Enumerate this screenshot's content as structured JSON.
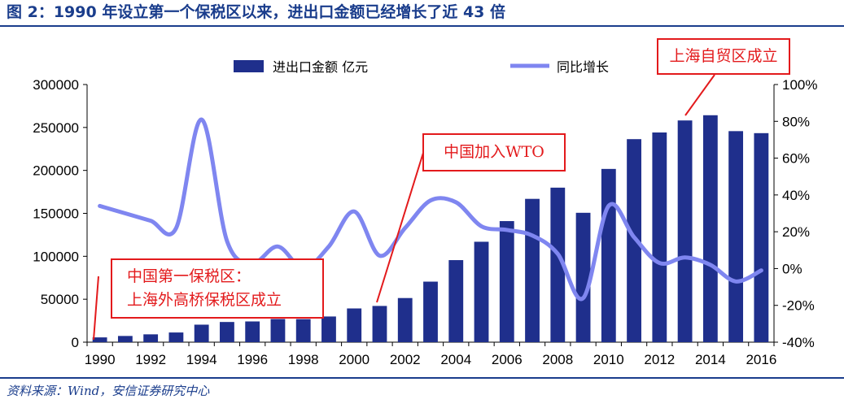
{
  "header": {
    "title": "图 2：1990 年设立第一个保税区以来，进出口金额已经增长了近 43 倍"
  },
  "footer": {
    "source": "资料来源：Wind，安信证券研究中心"
  },
  "colors": {
    "bar": "#1f2f8c",
    "line": "#7f86f0",
    "callout": "#e31a1c",
    "title": "#1a3d8c"
  },
  "callouts": {
    "ftz": "上海自贸区成立",
    "wto": "中国加入WTO",
    "first_line1": "中国第一保税区：",
    "first_line2": "上海外高桥保税区成立"
  },
  "chart_data": {
    "type": "bar",
    "categories": [
      "1990",
      "1991",
      "1992",
      "1993",
      "1994",
      "1995",
      "1996",
      "1997",
      "1998",
      "1999",
      "2000",
      "2001",
      "2002",
      "2003",
      "2004",
      "2005",
      "2006",
      "2007",
      "2008",
      "2009",
      "2010",
      "2011",
      "2012",
      "2013",
      "2014",
      "2015",
      "2016"
    ],
    "x_tick_labels": [
      "1990",
      "1992",
      "1994",
      "1996",
      "1998",
      "2000",
      "2002",
      "2004",
      "2006",
      "2008",
      "2010",
      "2012",
      "2014",
      "2016"
    ],
    "series": [
      {
        "name": "进出口金额 亿元",
        "type": "bar",
        "axis": "left",
        "values": [
          5560,
          7226,
          9120,
          11271,
          20382,
          23500,
          24134,
          26967,
          26850,
          29896,
          39273,
          42184,
          51378,
          70484,
          95539,
          116922,
          140974,
          166863,
          179921,
          150648,
          201722,
          236402,
          244160,
          258169,
          264242,
          245741,
          243386
        ]
      },
      {
        "name": "同比增长",
        "type": "line",
        "axis": "right",
        "values": [
          34,
          30,
          26,
          22,
          81,
          15,
          3,
          12,
          0,
          12,
          31,
          7,
          22,
          37,
          36,
          23,
          21,
          18,
          8,
          -16,
          34,
          17,
          3,
          6,
          2,
          -7,
          -1
        ]
      }
    ],
    "y_left": {
      "ylim": [
        0,
        300000
      ],
      "ticks": [
        "0",
        "50000",
        "100000",
        "150000",
        "200000",
        "250000",
        "300000"
      ]
    },
    "y_right": {
      "ylim": [
        -40,
        100
      ],
      "ticks": [
        "-40%",
        "-20%",
        "0%",
        "20%",
        "40%",
        "60%",
        "80%",
        "100%"
      ]
    },
    "legend": {
      "position": "top"
    },
    "grid": false,
    "annotations": [
      {
        "text": "上海自贸区成立",
        "points_to": "2013"
      },
      {
        "text": "中国加入WTO",
        "points_to": "2001"
      },
      {
        "text": "中国第一保税区：上海外高桥保税区成立",
        "points_to": "1990"
      }
    ]
  }
}
